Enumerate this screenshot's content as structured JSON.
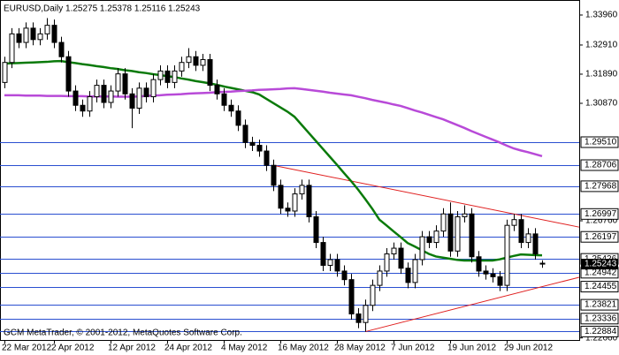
{
  "chart_data": {
    "type": "candlestick",
    "title": "EURUSD,Daily  1.25275 1.25378 1.25116 1.25243",
    "copyright": "GCM MetaTrader, © 2001-2012, MetaQuotes Software Corp.",
    "categories": [
      "22 Mar 2012",
      null,
      null,
      null,
      null,
      null,
      null,
      "2 Apr 2012",
      null,
      null,
      null,
      null,
      null,
      null,
      null,
      "12 Apr 2012",
      null,
      null,
      null,
      null,
      null,
      null,
      null,
      "24 Apr 2012",
      null,
      null,
      null,
      null,
      null,
      null,
      null,
      "4 May 2012",
      null,
      null,
      null,
      null,
      null,
      null,
      null,
      "16 May 2012",
      null,
      null,
      null,
      null,
      null,
      null,
      null,
      "28 May 2012",
      null,
      null,
      null,
      null,
      null,
      null,
      null,
      "7 Jun 2012",
      null,
      null,
      null,
      null,
      null,
      null,
      null,
      "19 Jun 2012",
      null,
      null,
      null,
      null,
      null,
      null,
      null,
      "29 Jun 2012",
      null,
      null,
      null,
      null,
      null
    ],
    "open": [
      1.316,
      1.323,
      1.333,
      1.33,
      1.335,
      1.331,
      1.333,
      1.336,
      1.33,
      1.325,
      1.313,
      1.308,
      1.306,
      1.311,
      1.315,
      1.309,
      1.313,
      1.319,
      1.312,
      1.307,
      1.314,
      1.311,
      1.317,
      1.32,
      1.316,
      1.32,
      1.323,
      1.325,
      1.322,
      1.324,
      1.315,
      1.312,
      1.308,
      1.306,
      1.301,
      1.295,
      1.294,
      1.292,
      1.287,
      1.28,
      1.272,
      1.271,
      1.277,
      1.28,
      1.269,
      1.26,
      1.252,
      1.254,
      1.25,
      1.247,
      1.235,
      1.232,
      1.238,
      1.245,
      1.25,
      1.256,
      1.258,
      1.251,
      1.246,
      1.254,
      1.262,
      1.26,
      1.264,
      1.27,
      1.257,
      1.269,
      1.27,
      1.255,
      1.25,
      1.249,
      1.248,
      1.245,
      1.266,
      1.268,
      1.26,
      1.263,
      1.25275
    ],
    "high": [
      1.325,
      1.335,
      1.335,
      1.337,
      1.337,
      1.335,
      1.3385,
      1.338,
      1.332,
      1.327,
      1.315,
      1.31,
      1.313,
      1.317,
      1.317,
      1.315,
      1.321,
      1.321,
      1.314,
      1.316,
      1.316,
      1.319,
      1.322,
      1.322,
      1.322,
      1.325,
      1.328,
      1.327,
      1.326,
      1.326,
      1.317,
      1.314,
      1.31,
      1.308,
      1.303,
      1.297,
      1.296,
      1.294,
      1.289,
      1.282,
      1.274,
      1.279,
      1.282,
      1.282,
      1.271,
      1.262,
      1.256,
      1.256,
      1.252,
      1.249,
      1.237,
      1.24,
      1.247,
      1.252,
      1.258,
      1.26,
      1.26,
      1.253,
      1.256,
      1.264,
      1.264,
      1.266,
      1.272,
      1.274,
      1.271,
      1.273,
      1.272,
      1.257,
      1.252,
      1.251,
      1.25,
      1.268,
      1.27,
      1.27,
      1.265,
      1.265,
      1.25378
    ],
    "low": [
      1.314,
      1.321,
      1.328,
      1.328,
      1.329,
      1.329,
      1.331,
      1.328,
      1.323,
      1.311,
      1.306,
      1.304,
      1.304,
      1.309,
      1.307,
      1.307,
      1.311,
      1.31,
      1.3,
      1.305,
      1.309,
      1.309,
      1.315,
      1.314,
      1.314,
      1.318,
      1.321,
      1.32,
      1.32,
      1.313,
      1.31,
      1.306,
      1.304,
      1.299,
      1.293,
      1.292,
      1.29,
      1.285,
      1.278,
      1.27,
      1.269,
      1.269,
      1.275,
      1.267,
      1.258,
      1.25,
      1.25,
      1.248,
      1.245,
      1.233,
      1.23,
      1.2288,
      1.236,
      1.243,
      1.248,
      1.254,
      1.249,
      1.244,
      1.244,
      1.252,
      1.258,
      1.258,
      1.262,
      1.255,
      1.255,
      1.267,
      1.253,
      1.248,
      1.247,
      1.246,
      1.243,
      1.243,
      1.264,
      1.258,
      1.258,
      1.254,
      1.25116
    ],
    "close": [
      1.323,
      1.333,
      1.33,
      1.335,
      1.331,
      1.333,
      1.336,
      1.33,
      1.325,
      1.313,
      1.308,
      1.306,
      1.311,
      1.315,
      1.309,
      1.313,
      1.319,
      1.312,
      1.307,
      1.314,
      1.311,
      1.317,
      1.32,
      1.316,
      1.32,
      1.323,
      1.325,
      1.322,
      1.324,
      1.315,
      1.312,
      1.308,
      1.306,
      1.301,
      1.295,
      1.294,
      1.292,
      1.287,
      1.28,
      1.272,
      1.271,
      1.277,
      1.28,
      1.269,
      1.26,
      1.252,
      1.254,
      1.25,
      1.247,
      1.235,
      1.232,
      1.238,
      1.245,
      1.25,
      1.256,
      1.258,
      1.251,
      1.246,
      1.254,
      1.262,
      1.26,
      1.264,
      1.27,
      1.257,
      1.269,
      1.27,
      1.255,
      1.25,
      1.249,
      1.248,
      1.245,
      1.266,
      1.268,
      1.26,
      1.263,
      1.256,
      1.25243
    ],
    "lines": [
      {
        "color": "#0a7a0a",
        "values": [
          1.3226,
          1.3227,
          1.3228,
          1.3229,
          1.323,
          1.3231,
          1.3232,
          1.3234,
          1.3235,
          1.3231,
          1.3228,
          1.3224,
          1.3221,
          1.3217,
          1.3214,
          1.321,
          1.3207,
          1.3203,
          1.32,
          1.3196,
          1.3193,
          1.3189,
          1.3186,
          1.3182,
          1.3179,
          1.3174,
          1.317,
          1.3165,
          1.3161,
          1.3157,
          1.3152,
          1.3146,
          1.3141,
          1.3136,
          1.3131,
          1.3126,
          1.3118,
          1.3103,
          1.3088,
          1.3073,
          1.3058,
          1.304,
          1.3012,
          1.2984,
          1.2956,
          1.2928,
          1.29,
          1.2872,
          1.2843,
          1.2815,
          1.2785,
          1.2752,
          1.2718,
          1.268,
          1.266,
          1.2639,
          1.2619,
          1.2598,
          1.2586,
          1.2573,
          1.256,
          1.2551,
          1.2547,
          1.2543,
          1.2539,
          1.2537,
          1.2537,
          1.2537,
          1.2537,
          1.2537,
          1.2541,
          1.2547,
          1.2553,
          1.2558,
          1.2557,
          1.2556,
          1.2555
        ]
      },
      {
        "color": "#b84ad8",
        "values": [
          1.3115,
          1.3115,
          1.3115,
          1.3114,
          1.3114,
          1.3114,
          1.3113,
          1.3113,
          1.3113,
          1.3112,
          1.3112,
          1.3112,
          1.3111,
          1.3111,
          1.3111,
          1.3111,
          1.311,
          1.311,
          1.311,
          1.3111,
          1.3113,
          1.3114,
          1.3115,
          1.3117,
          1.3118,
          1.3119,
          1.3121,
          1.3122,
          1.3123,
          1.3124,
          1.3126,
          1.3127,
          1.3128,
          1.313,
          1.3131,
          1.3132,
          1.3134,
          1.3135,
          1.3136,
          1.3137,
          1.3139,
          1.314,
          1.3137,
          1.3134,
          1.3131,
          1.3128,
          1.3124,
          1.3121,
          1.3118,
          1.3115,
          1.311,
          1.3105,
          1.3099,
          1.3094,
          1.3089,
          1.3083,
          1.3078,
          1.307,
          1.3062,
          1.3055,
          1.3047,
          1.3039,
          1.3031,
          1.3021,
          1.3011,
          1.3001,
          1.299,
          1.298,
          1.297,
          1.296,
          1.295,
          1.2939,
          1.2929,
          1.2922,
          1.2916,
          1.2909,
          1.2902
        ]
      }
    ],
    "trendlines": [
      {
        "color": "#e02020",
        "x": [
          38,
          70
        ],
        "values": [
          1.287,
          1.271
        ]
      },
      {
        "color": "#e02020",
        "x": [
          51,
          75
        ],
        "values": [
          1.2288,
          1.2439
        ]
      }
    ],
    "levels_color": "#2a4fd0",
    "levels": [
      {
        "value": 1.2951,
        "label": "1.29510"
      },
      1.28706,
      1.27968,
      1.26997,
      1.26197,
      1.25426,
      1.24942,
      1.24455,
      1.23821,
      1.23336,
      1.22884
    ],
    "last_price": 1.25243,
    "ylim": [
      1.22588,
      1.34485
    ],
    "yticks": [
      {
        "value": 1.3396,
        "label": "1.33960"
      },
      {
        "value": 1.3291,
        "label": "1.32910"
      },
      {
        "value": 1.3189,
        "label": "1.31890"
      },
      {
        "value": 1.3087,
        "label": "1.30870"
      },
      {
        "value": 1.2676,
        "label": "1.26760"
      },
      {
        "value": 1.2266,
        "label": "1.22660"
      }
    ]
  }
}
